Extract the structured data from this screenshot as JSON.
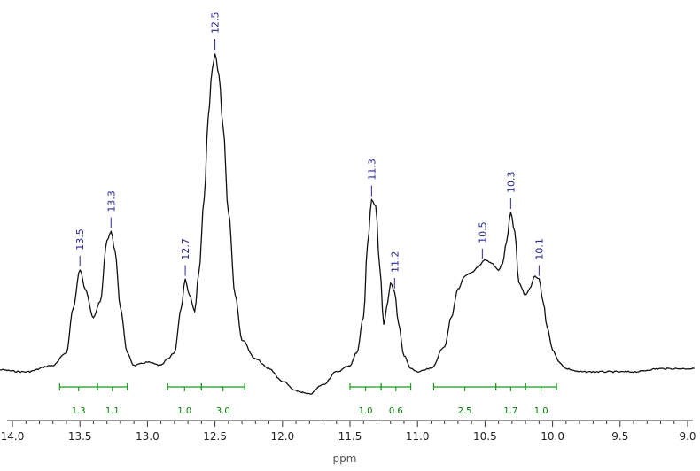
{
  "chart_data": {
    "type": "line",
    "title": "",
    "xlabel": "ppm",
    "ylabel": "",
    "xlim": [
      14.0,
      9.0
    ],
    "x_reversed": true,
    "x_ticks": [
      "14.0",
      "13.5",
      "13.0",
      "12.5",
      "12.0",
      "11.5",
      "11.0",
      "10.5",
      "10.0",
      "9.5",
      "9.0"
    ],
    "grid": false,
    "series": [
      {
        "x": [
          14.2,
          13.9,
          13.7,
          13.6,
          13.55,
          13.5,
          13.46,
          13.4,
          13.35,
          13.3,
          13.27,
          13.24,
          13.2,
          13.15,
          13.1,
          13.0,
          12.9,
          12.85,
          12.8,
          12.75,
          12.72,
          12.69,
          12.65,
          12.62,
          12.58,
          12.55,
          12.52,
          12.5,
          12.47,
          12.44,
          12.4,
          12.35,
          12.3,
          12.2,
          12.1,
          12.0,
          11.9,
          11.8,
          11.7,
          11.6,
          11.5,
          11.45,
          11.4,
          11.37,
          11.34,
          11.31,
          11.28,
          11.25,
          11.22,
          11.2,
          11.17,
          11.14,
          11.1,
          11.05,
          11.0,
          10.9,
          10.8,
          10.75,
          10.7,
          10.65,
          10.6,
          10.55,
          10.5,
          10.45,
          10.4,
          10.37,
          10.34,
          10.31,
          10.28,
          10.25,
          10.2,
          10.17,
          10.13,
          10.1,
          10.07,
          10.04,
          10.0,
          9.95,
          9.9,
          9.8,
          9.6,
          9.4,
          9.2,
          9.0,
          8.95
        ],
        "y": [
          1,
          0,
          2,
          6,
          20,
          32,
          26,
          17,
          22,
          41,
          44,
          38,
          20,
          6,
          2,
          3,
          2,
          4,
          6,
          20,
          29,
          24,
          19,
          31,
          54,
          80,
          95,
          100,
          93,
          77,
          50,
          24,
          10,
          4,
          1,
          -3,
          -6,
          -7,
          -4,
          0,
          2,
          6,
          17,
          40,
          54,
          52,
          33,
          15,
          22,
          28,
          25,
          15,
          5,
          1,
          0,
          1,
          8,
          17,
          26,
          30,
          31,
          33,
          35,
          34,
          32,
          34,
          41,
          50,
          44,
          28,
          24,
          26,
          30,
          29,
          22,
          14,
          7,
          3,
          1,
          0,
          0,
          0,
          1,
          1,
          1
        ]
      }
    ],
    "peak_labels": [
      {
        "label": "13.5",
        "x": 13.5
      },
      {
        "label": "13.3",
        "x": 13.27
      },
      {
        "label": "12.7",
        "x": 12.72
      },
      {
        "label": "12.5",
        "x": 12.5
      },
      {
        "label": "11.3",
        "x": 11.34
      },
      {
        "label": "11.2",
        "x": 11.17
      },
      {
        "label": "10.5",
        "x": 10.52
      },
      {
        "label": "10.3",
        "x": 10.31
      },
      {
        "label": "10.1",
        "x": 10.1
      }
    ],
    "integrals": [
      {
        "from": 13.65,
        "to": 13.37,
        "value": "1.3"
      },
      {
        "from": 13.37,
        "to": 13.15,
        "value": "1.1"
      },
      {
        "from": 12.85,
        "to": 12.6,
        "value": "1.0"
      },
      {
        "from": 12.6,
        "to": 12.28,
        "value": "3.0"
      },
      {
        "from": 11.5,
        "to": 11.27,
        "value": "1.0"
      },
      {
        "from": 11.27,
        "to": 11.05,
        "value": "0.6"
      },
      {
        "from": 10.88,
        "to": 10.42,
        "value": "2.5"
      },
      {
        "from": 10.42,
        "to": 10.2,
        "value": "1.7"
      },
      {
        "from": 10.2,
        "to": 9.97,
        "value": "1.0"
      }
    ]
  },
  "colors": {
    "spectrum": "#111111",
    "peak_label": "#2a2a9a",
    "integral": "#1a9a1a",
    "axis": "#333333"
  }
}
